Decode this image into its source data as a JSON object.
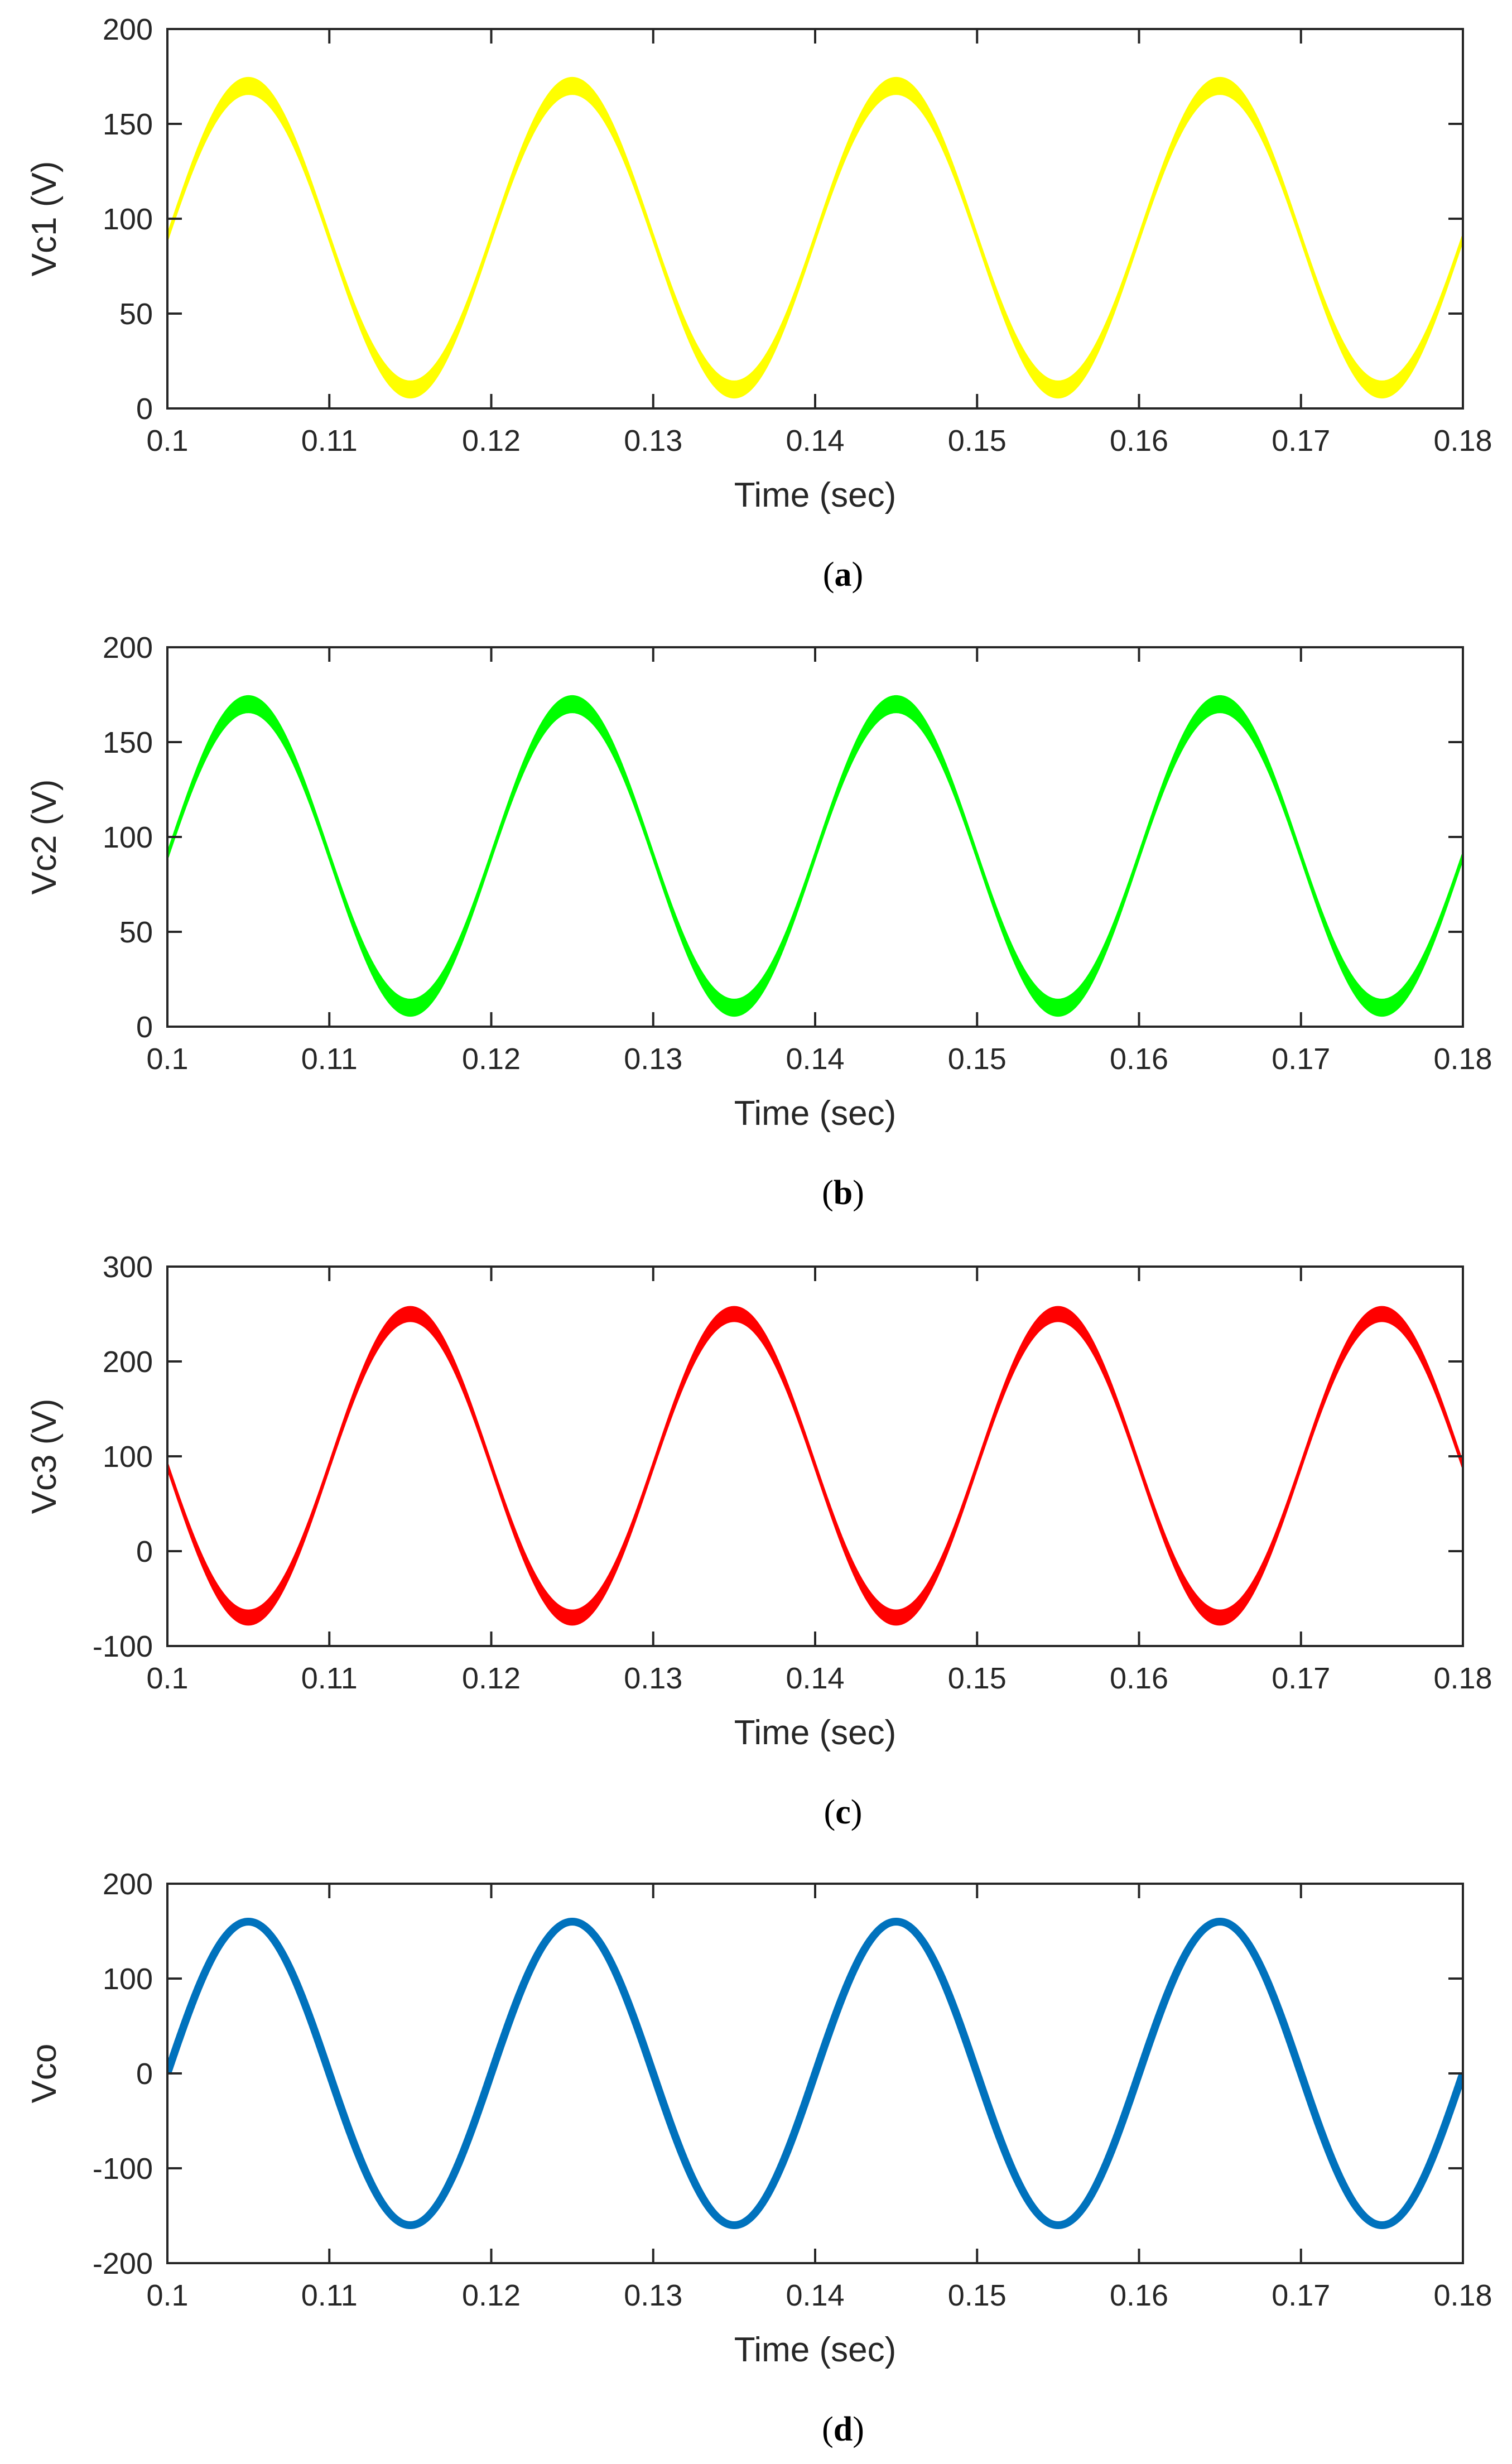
{
  "chart_data": [
    {
      "type": "line",
      "panel": "a",
      "caption_open": "(",
      "caption_letter": "a",
      "caption_close": ")",
      "title": "",
      "xlabel": "Time (sec)",
      "ylabel": "Vc1 (V)",
      "xlim": [
        0.1,
        0.18
      ],
      "ylim": [
        0,
        200
      ],
      "xticks": [
        0.1,
        0.11,
        0.12,
        0.13,
        0.14,
        0.15,
        0.16,
        0.17,
        0.18
      ],
      "xtick_labels": [
        "0.1",
        "0.11",
        "0.12",
        "0.13",
        "0.14",
        "0.15",
        "0.16",
        "0.17",
        "0.18"
      ],
      "yticks": [
        0,
        50,
        100,
        150,
        200
      ],
      "ytick_labels": [
        "0",
        "50",
        "100",
        "150",
        "200"
      ],
      "grid": false,
      "color": "#ffff00",
      "series": [
        {
          "name": "Vc1",
          "offset": 90,
          "amplitude": 80,
          "phase_deg": 0,
          "frequency_hz": 50,
          "ripple_band": 8
        }
      ]
    },
    {
      "type": "line",
      "panel": "b",
      "caption_open": "(",
      "caption_letter": "b",
      "caption_close": ")",
      "title": "",
      "xlabel": "Time (sec)",
      "ylabel": "Vc2 (V)",
      "xlim": [
        0.1,
        0.18
      ],
      "ylim": [
        0,
        200
      ],
      "xticks": [
        0.1,
        0.11,
        0.12,
        0.13,
        0.14,
        0.15,
        0.16,
        0.17,
        0.18
      ],
      "xtick_labels": [
        "0.1",
        "0.11",
        "0.12",
        "0.13",
        "0.14",
        "0.15",
        "0.16",
        "0.17",
        "0.18"
      ],
      "yticks": [
        0,
        50,
        100,
        150,
        200
      ],
      "ytick_labels": [
        "0",
        "50",
        "100",
        "150",
        "200"
      ],
      "grid": false,
      "color": "#00ff00",
      "series": [
        {
          "name": "Vc2",
          "offset": 90,
          "amplitude": 80,
          "phase_deg": 0,
          "frequency_hz": 50,
          "ripple_band": 8
        }
      ]
    },
    {
      "type": "line",
      "panel": "c",
      "caption_open": "(",
      "caption_letter": "c",
      "caption_close": ")",
      "title": "",
      "xlabel": "Time (sec)",
      "ylabel": "Vc3 (V)",
      "xlim": [
        0.1,
        0.18
      ],
      "ylim": [
        -100,
        300
      ],
      "xticks": [
        0.1,
        0.11,
        0.12,
        0.13,
        0.14,
        0.15,
        0.16,
        0.17,
        0.18
      ],
      "xtick_labels": [
        "0.1",
        "0.11",
        "0.12",
        "0.13",
        "0.14",
        "0.15",
        "0.16",
        "0.17",
        "0.18"
      ],
      "yticks": [
        -100,
        0,
        100,
        200,
        300
      ],
      "ytick_labels": [
        "-100",
        "0",
        "100",
        "200",
        "300"
      ],
      "grid": false,
      "color": "#ff0000",
      "series": [
        {
          "name": "Vc3",
          "offset": 90,
          "amplitude": 160,
          "phase_deg": 180,
          "frequency_hz": 50,
          "ripple_band": 14
        }
      ]
    },
    {
      "type": "line",
      "panel": "d",
      "caption_open": "(",
      "caption_letter": "d",
      "caption_close": ")",
      "title": "",
      "xlabel": "Time (sec)",
      "ylabel": "Vco",
      "xlim": [
        0.1,
        0.18
      ],
      "ylim": [
        -200,
        200
      ],
      "xticks": [
        0.1,
        0.11,
        0.12,
        0.13,
        0.14,
        0.15,
        0.16,
        0.17,
        0.18
      ],
      "xtick_labels": [
        "0.1",
        "0.11",
        "0.12",
        "0.13",
        "0.14",
        "0.15",
        "0.16",
        "0.17",
        "0.18"
      ],
      "yticks": [
        -200,
        -100,
        0,
        100,
        200
      ],
      "ytick_labels": [
        "-200",
        "-100",
        "0",
        "100",
        "200"
      ],
      "grid": false,
      "color": "#0072bd",
      "series": [
        {
          "name": "Vco",
          "offset": 0,
          "amplitude": 160,
          "phase_deg": 0,
          "frequency_hz": 50,
          "ripple_band": 0
        }
      ]
    }
  ]
}
